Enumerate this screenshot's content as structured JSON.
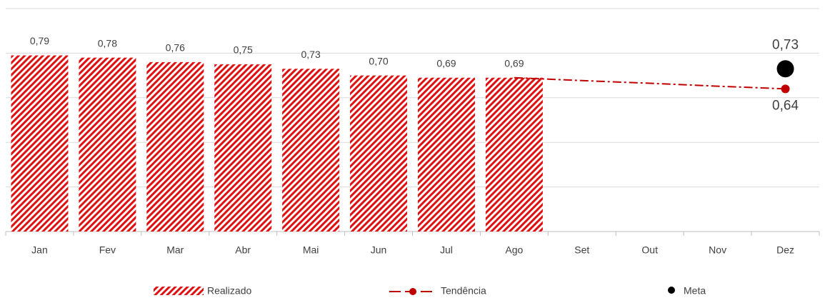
{
  "chart_data": {
    "type": "bar",
    "categories": [
      "Jan",
      "Fev",
      "Mar",
      "Abr",
      "Mai",
      "Jun",
      "Jul",
      "Ago",
      "Set",
      "Out",
      "Nov",
      "Dez"
    ],
    "ylim": [
      0,
      1
    ],
    "yticks": [
      0,
      0.2,
      0.4,
      0.6,
      0.8,
      1
    ],
    "grid": true,
    "series": [
      {
        "name": "Realizado",
        "type": "bar",
        "color": "#e01010",
        "values": [
          0.79,
          0.78,
          0.76,
          0.75,
          0.73,
          0.7,
          0.69,
          0.69,
          null,
          null,
          null,
          null
        ],
        "value_labels": [
          "0,79",
          "0,78",
          "0,76",
          "0,75",
          "0,73",
          "0,70",
          "0,69",
          "0,69",
          null,
          null,
          null,
          null
        ]
      },
      {
        "name": "Tendência",
        "type": "line",
        "color": "#c00000",
        "values": [
          null,
          null,
          null,
          null,
          null,
          null,
          null,
          0.69,
          0.677,
          0.665,
          0.652,
          0.64
        ],
        "value_labels": [
          null,
          null,
          null,
          null,
          null,
          null,
          null,
          null,
          null,
          null,
          null,
          "0,64"
        ]
      },
      {
        "name": "Meta",
        "type": "scatter",
        "color": "#000000",
        "values": [
          null,
          null,
          null,
          null,
          null,
          null,
          null,
          null,
          null,
          null,
          null,
          0.73
        ],
        "value_labels": [
          null,
          null,
          null,
          null,
          null,
          null,
          null,
          null,
          null,
          null,
          null,
          "0,73"
        ]
      }
    ]
  }
}
